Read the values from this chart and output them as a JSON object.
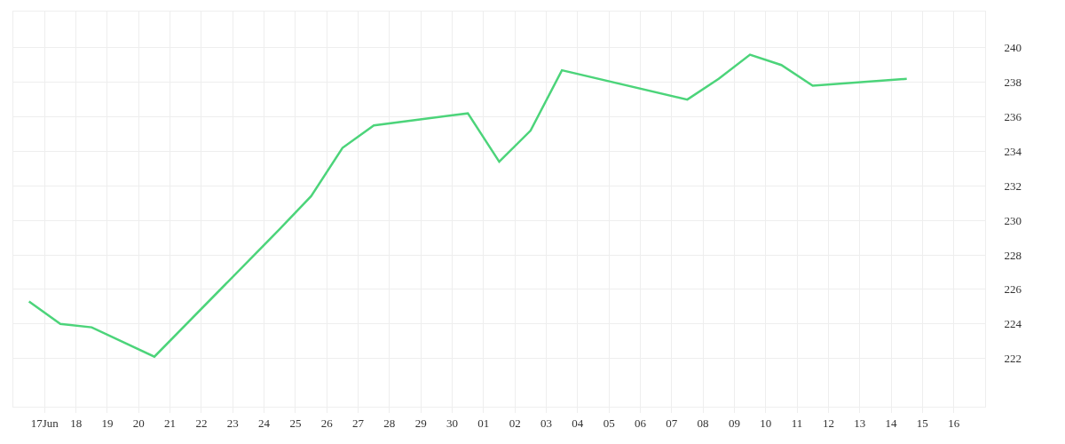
{
  "chart_data": {
    "type": "line",
    "color": "#4cd47a",
    "x": [
      "--06-16T12:00",
      "--06-17T12:00",
      "--06-18T12:00",
      "--06-20T12:00",
      "--06-24T12:00",
      "--06-25T12:00",
      "--06-26T12:00",
      "--06-27T12:00",
      "--06-30T12:00",
      "--07-01T12:00",
      "--07-02T12:00",
      "--07-03T12:00",
      "--07-07T12:00",
      "--07-08T12:00",
      "--07-09T12:00",
      "--07-10T12:00",
      "--07-11T12:00",
      "--07-14T12:00"
    ],
    "values": [
      225.3,
      224.0,
      223.8,
      222.1,
      229.5,
      231.4,
      234.2,
      235.5,
      236.2,
      233.4,
      235.2,
      238.7,
      237.0,
      238.2,
      239.6,
      239.0,
      237.8,
      238.2
    ],
    "xlim": [
      "--06-16",
      "--07-17"
    ],
    "ylim": [
      219.2,
      242.1
    ],
    "xticks": [
      {
        "value": "--06-17",
        "label": "17Jun"
      },
      {
        "value": "--06-18",
        "label": "18"
      },
      {
        "value": "--06-19",
        "label": "19"
      },
      {
        "value": "--06-20",
        "label": "20"
      },
      {
        "value": "--06-21",
        "label": "21"
      },
      {
        "value": "--06-22",
        "label": "22"
      },
      {
        "value": "--06-23",
        "label": "23"
      },
      {
        "value": "--06-24",
        "label": "24"
      },
      {
        "value": "--06-25",
        "label": "25"
      },
      {
        "value": "--06-26",
        "label": "26"
      },
      {
        "value": "--06-27",
        "label": "27"
      },
      {
        "value": "--06-28",
        "label": "28"
      },
      {
        "value": "--06-29",
        "label": "29"
      },
      {
        "value": "--06-30",
        "label": "30"
      },
      {
        "value": "--07-01",
        "label": "01"
      },
      {
        "value": "--07-02",
        "label": "02"
      },
      {
        "value": "--07-03",
        "label": "03"
      },
      {
        "value": "--07-04",
        "label": "04"
      },
      {
        "value": "--07-05",
        "label": "05"
      },
      {
        "value": "--07-06",
        "label": "06"
      },
      {
        "value": "--07-07",
        "label": "07"
      },
      {
        "value": "--07-08",
        "label": "08"
      },
      {
        "value": "--07-09",
        "label": "09"
      },
      {
        "value": "--07-10",
        "label": "10"
      },
      {
        "value": "--07-11",
        "label": "11"
      },
      {
        "value": "--07-12",
        "label": "12"
      },
      {
        "value": "--07-13",
        "label": "13"
      },
      {
        "value": "--07-14",
        "label": "14"
      },
      {
        "value": "--07-15",
        "label": "15"
      },
      {
        "value": "--07-16",
        "label": "16"
      }
    ],
    "yticks": [
      222,
      224,
      226,
      228,
      230,
      232,
      234,
      236,
      238,
      240
    ],
    "grid": true,
    "line_style": "solid",
    "marker": "none"
  }
}
